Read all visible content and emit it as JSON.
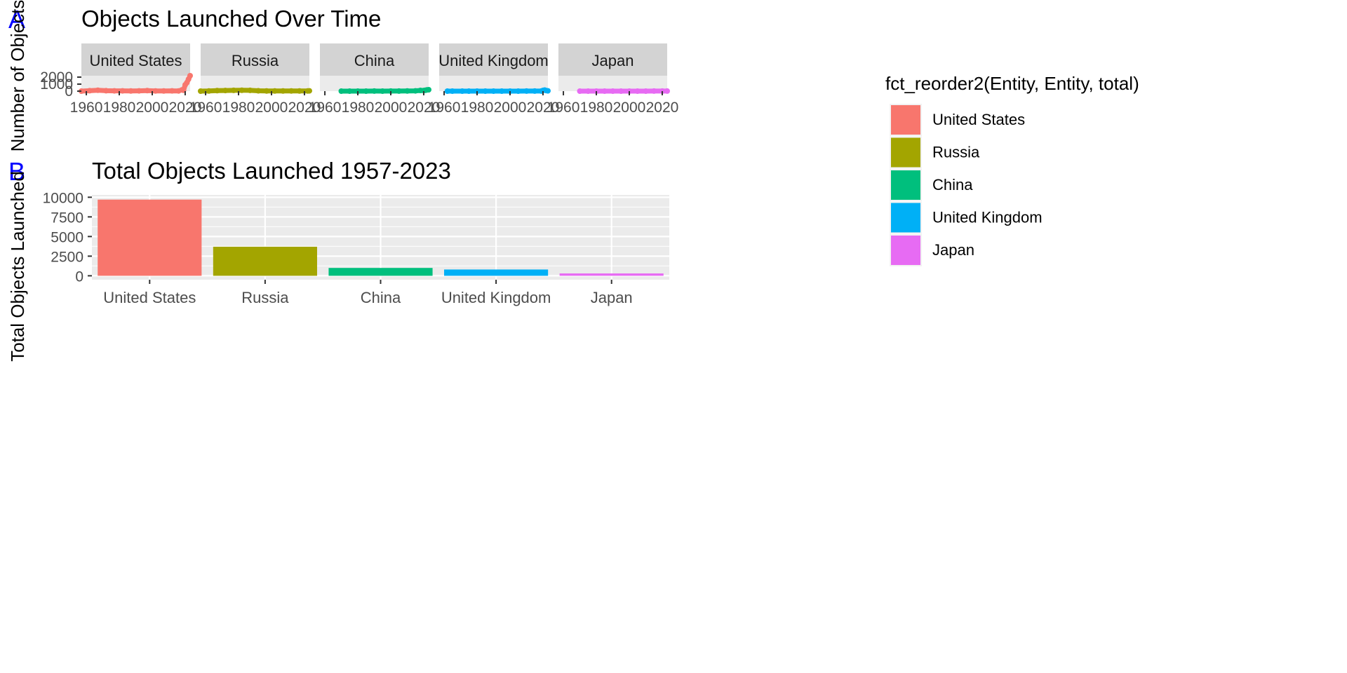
{
  "panel_tags": {
    "a": "A",
    "b": "B"
  },
  "colors": {
    "panel_bg": "#EBEBEB",
    "strip_bg": "#D3D3D3",
    "grid": "#FFFFFF",
    "tag": "#0000FF",
    "axis_text": "#4D4D4D",
    "tick": "#333333"
  },
  "legend": {
    "title": "fct_reorder2(Entity, Entity, total)",
    "items": [
      {
        "label": "United States",
        "color": "#F8766D"
      },
      {
        "label": "Russia",
        "color": "#A3A500"
      },
      {
        "label": "China",
        "color": "#00BF7D"
      },
      {
        "label": "United Kingdom",
        "color": "#00B0F6"
      },
      {
        "label": "Japan",
        "color": "#E76BF3"
      }
    ]
  },
  "chart_data": [
    {
      "type": "line",
      "title": "Objects Launched Over Time",
      "xlabel": "",
      "ylabel": "Number of Objects",
      "facets": [
        "United States",
        "Russia",
        "China",
        "United Kingdom",
        "Japan"
      ],
      "x_ticks": [
        1960,
        1980,
        2000,
        2020
      ],
      "xlim": [
        1957,
        2023
      ],
      "y_ticks": [
        0,
        1000,
        2000
      ],
      "y_tick_labels": [
        "0",
        "1000",
        "2000"
      ],
      "ylim": [
        0,
        2200
      ],
      "grid": false,
      "series": [
        {
          "name": "United States",
          "color": "#F8766D",
          "x": [
            1957,
            1962,
            1967,
            1972,
            1977,
            1982,
            1987,
            1992,
            1997,
            2002,
            2007,
            2012,
            2016,
            2018,
            2019,
            2020,
            2021,
            2022,
            2023
          ],
          "values": [
            2,
            60,
            130,
            60,
            40,
            40,
            20,
            40,
            80,
            30,
            20,
            40,
            30,
            180,
            120,
            900,
            1200,
            1700,
            2200
          ]
        },
        {
          "name": "Russia",
          "color": "#A3A500",
          "x": [
            1957,
            1962,
            1967,
            1972,
            1977,
            1982,
            1987,
            1992,
            1997,
            2002,
            2007,
            2012,
            2017,
            2022,
            2023
          ],
          "values": [
            3,
            20,
            70,
            90,
            110,
            120,
            110,
            50,
            30,
            20,
            25,
            30,
            20,
            30,
            40
          ]
        },
        {
          "name": "China",
          "color": "#00BF7D",
          "x": [
            1970,
            1975,
            1980,
            1985,
            1990,
            1995,
            2000,
            2005,
            2010,
            2015,
            2018,
            2020,
            2021,
            2022,
            2023
          ],
          "values": [
            1,
            3,
            2,
            3,
            5,
            2,
            5,
            8,
            20,
            40,
            100,
            90,
            120,
            180,
            200
          ]
        },
        {
          "name": "United Kingdom",
          "color": "#00B0F6",
          "x": [
            1962,
            1965,
            1971,
            1975,
            1980,
            1985,
            1990,
            1995,
            2000,
            2005,
            2010,
            2015,
            2019,
            2020,
            2021,
            2022,
            2023
          ],
          "values": [
            1,
            1,
            1,
            2,
            1,
            2,
            3,
            1,
            2,
            3,
            5,
            8,
            12,
            100,
            150,
            80,
            40
          ]
        },
        {
          "name": "Japan",
          "color": "#E76BF3",
          "x": [
            1970,
            1975,
            1980,
            1985,
            1990,
            1995,
            2000,
            2005,
            2010,
            2015,
            2020,
            2023
          ],
          "values": [
            1,
            2,
            3,
            2,
            3,
            2,
            3,
            4,
            4,
            6,
            8,
            5
          ]
        }
      ]
    },
    {
      "type": "bar",
      "title": "Total Objects Launched 1957-2023",
      "xlabel": "",
      "ylabel": "Total Objects Launched",
      "categories": [
        "United States",
        "Russia",
        "China",
        "United Kingdom",
        "Japan"
      ],
      "values": [
        9700,
        3700,
        1000,
        800,
        300
      ],
      "colors": [
        "#F8766D",
        "#A3A500",
        "#00BF7D",
        "#00B0F6",
        "#E76BF3"
      ],
      "y_ticks": [
        0,
        2500,
        5000,
        7500,
        10000
      ],
      "y_tick_labels": [
        "0",
        "2500",
        "5000",
        "7500",
        "10000"
      ],
      "ylim": [
        -500,
        10300
      ],
      "grid": true
    }
  ]
}
